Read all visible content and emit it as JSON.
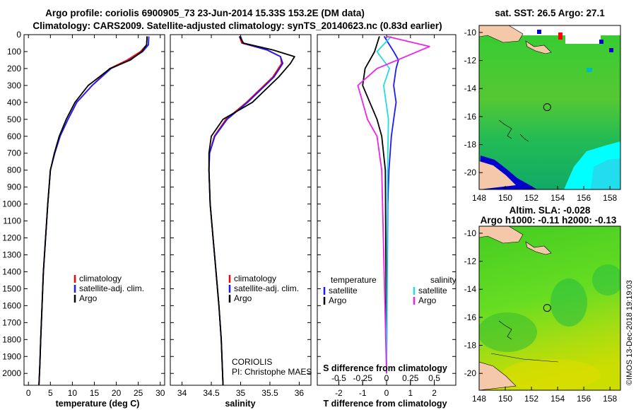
{
  "title_line1": "Argo profile: coriolis 6900905_73 23-Jun-2014 15.33S 153.2E (DM data)",
  "title_line2": "Climatology: CARS2009. Satellite-adjusted climatology: synTS_20140623.nc (0.83d earlier)",
  "side_credit": "©IMOS 13-Dec-2018 19:19:03",
  "colors": {
    "climatology": "#ff0000",
    "satellite": "#1a1aff",
    "argo": "#000000",
    "salinity_sat": "#22dddd",
    "salinity_argo": "#ee22ee"
  },
  "chart_data": [
    {
      "type": "line",
      "name": "temperature",
      "xlabel": "temperature (deg C)",
      "ylabel": "",
      "xlim": [
        -1,
        31
      ],
      "ylim": [
        2070,
        0
      ],
      "xticks": [
        "0",
        "5",
        "10",
        "15",
        "20",
        "25",
        "30"
      ],
      "xtick_values": [
        0,
        5,
        10,
        15,
        20,
        25,
        30
      ],
      "yticks": [
        "0",
        "100",
        "200",
        "300",
        "400",
        "500",
        "600",
        "700",
        "800",
        "900",
        "1000",
        "1100",
        "1200",
        "1300",
        "1400",
        "1500",
        "1600",
        "1700",
        "1800",
        "1900",
        "2000"
      ],
      "ytick_values": [
        0,
        100,
        200,
        300,
        400,
        500,
        600,
        700,
        800,
        900,
        1000,
        1100,
        1200,
        1300,
        1400,
        1500,
        1600,
        1700,
        1800,
        1900,
        2000
      ],
      "series": [
        {
          "name": "climatology",
          "color": "#ff0000",
          "x": [
            27.0,
            26.9,
            25.5,
            22.5,
            18.5,
            14.5,
            11.0,
            9.0,
            7.2,
            6.0,
            5.0,
            4.4,
            3.9,
            3.4,
            3.1,
            2.8,
            2.6,
            2.4
          ],
          "y": [
            10,
            60,
            100,
            150,
            200,
            300,
            400,
            500,
            600,
            700,
            800,
            1000,
            1200,
            1400,
            1600,
            1800,
            1950,
            2070
          ]
        },
        {
          "name": "satellite-adj. clim.",
          "color": "#1a1aff",
          "x": [
            27.4,
            27.3,
            26.0,
            23.0,
            18.8,
            14.5,
            11.0,
            9.0,
            7.2,
            6.0,
            5.0,
            4.4,
            3.9,
            3.4,
            3.1,
            2.8,
            2.6,
            2.4
          ],
          "y": [
            10,
            60,
            100,
            150,
            200,
            300,
            400,
            500,
            600,
            700,
            800,
            1000,
            1200,
            1400,
            1600,
            1800,
            1950,
            2070
          ]
        },
        {
          "name": "Argo",
          "color": "#000000",
          "x": [
            27.0,
            26.9,
            25.8,
            23.2,
            18.6,
            13.6,
            10.6,
            8.6,
            7.0,
            5.9,
            5.0,
            4.4,
            3.9,
            3.4,
            3.1,
            2.8,
            2.6,
            2.4
          ],
          "y": [
            10,
            60,
            100,
            150,
            200,
            300,
            400,
            500,
            600,
            700,
            800,
            1000,
            1200,
            1400,
            1600,
            1800,
            1950,
            2070
          ]
        }
      ],
      "legend": [
        "climatology",
        "satellite-adj. clim.",
        "Argo"
      ]
    },
    {
      "type": "line",
      "name": "salinity",
      "xlabel": "salinity",
      "xlim": [
        33.8,
        36.2
      ],
      "ylim": [
        2070,
        0
      ],
      "xticks": [
        "34",
        "34.5",
        "35",
        "35.5",
        "36"
      ],
      "xtick_values": [
        34,
        34.5,
        35,
        35.5,
        36
      ],
      "series": [
        {
          "name": "climatology",
          "color": "#ff0000",
          "x": [
            34.98,
            35.02,
            35.45,
            35.68,
            35.7,
            35.55,
            35.1,
            34.75,
            34.55,
            34.47,
            34.46,
            34.48,
            34.53,
            34.58,
            34.63,
            34.67,
            34.7
          ],
          "y": [
            10,
            50,
            90,
            130,
            170,
            250,
            400,
            500,
            600,
            700,
            800,
            1000,
            1200,
            1400,
            1600,
            1800,
            2070
          ]
        },
        {
          "name": "satellite-adj. clim.",
          "color": "#1a1aff",
          "x": [
            35.0,
            35.04,
            35.45,
            35.68,
            35.72,
            35.57,
            35.12,
            34.77,
            34.56,
            34.47,
            34.46,
            34.48,
            34.53,
            34.58,
            34.63,
            34.67,
            34.7
          ],
          "y": [
            10,
            50,
            90,
            130,
            170,
            250,
            400,
            500,
            600,
            700,
            800,
            1000,
            1200,
            1400,
            1600,
            1800,
            2070
          ]
        },
        {
          "name": "Argo",
          "color": "#000000",
          "x": [
            34.98,
            35.05,
            35.55,
            35.92,
            35.85,
            35.65,
            35.2,
            34.7,
            34.5,
            34.46,
            34.46,
            34.48,
            34.53,
            34.58,
            34.63,
            34.67,
            34.7
          ],
          "y": [
            10,
            50,
            90,
            130,
            170,
            250,
            400,
            500,
            600,
            700,
            800,
            1000,
            1200,
            1400,
            1600,
            1800,
            2070
          ]
        }
      ],
      "legend": [
        "climatology",
        "satellite-adj. clim.",
        "Argo"
      ],
      "annotation": [
        "CORIOLIS",
        "PI: Christophe MAES"
      ]
    },
    {
      "type": "line",
      "name": "difference",
      "xlabel": "T difference from climatology",
      "xlim": [
        -2.9,
        2.9
      ],
      "ylim": [
        2070,
        0
      ],
      "xticks": [
        "-2",
        "-1",
        "0",
        "1",
        "2"
      ],
      "xtick_values": [
        -2,
        -1,
        0,
        1,
        2
      ],
      "sticks_label": "S difference from climatology",
      "sticks": [
        "-0.5",
        "-0.25",
        "0",
        "0.25",
        "0.5"
      ],
      "stick_values": [
        -0.5,
        -0.25,
        0,
        0.25,
        0.5
      ],
      "series": [
        {
          "name": "T satellite",
          "color": "#1a1aff",
          "x": [
            -0.1,
            0.3,
            0.5,
            0.4,
            0.3,
            0.4,
            0.3,
            0.2,
            0.1,
            0.05,
            0.0
          ],
          "y": [
            10,
            100,
            150,
            200,
            300,
            400,
            500,
            600,
            800,
            1000,
            2000
          ]
        },
        {
          "name": "T Argo",
          "color": "#000000",
          "x": [
            -0.3,
            -0.5,
            -0.9,
            -1.0,
            -0.7,
            -0.4,
            -0.2,
            -0.05,
            0.0
          ],
          "y": [
            10,
            100,
            200,
            300,
            400,
            500,
            600,
            800,
            2000
          ]
        },
        {
          "name": "S satellite",
          "color": "#22dddd",
          "x": [
            0.05,
            -0.1,
            0.03,
            -0.03,
            0.02,
            0.01,
            0.0
          ],
          "y": [
            10,
            100,
            200,
            300,
            500,
            800,
            2000
          ]
        },
        {
          "name": "S Argo",
          "color": "#ee22ee",
          "x": [
            0.0,
            0.45,
            0.2,
            -0.1,
            -0.3,
            -0.25,
            -0.2,
            -0.1,
            -0.05,
            0.0
          ],
          "y": [
            10,
            70,
            130,
            200,
            300,
            400,
            500,
            600,
            800,
            2000
          ]
        }
      ],
      "legend_left_title": "temperature",
      "legend_right_title": "salinity",
      "legend_left": [
        "satellite",
        "Argo"
      ],
      "legend_right": [
        "satellite",
        "Argo"
      ]
    }
  ],
  "maps": [
    {
      "title": "sat. SST: 26.5 Argo: 27.1",
      "subtitle": "",
      "xlim": [
        148,
        158.8
      ],
      "ylim": [
        -21.2,
        -9.5
      ],
      "xticks": [
        "148",
        "150",
        "152",
        "154",
        "156",
        "158"
      ],
      "xtick_values": [
        148,
        150,
        152,
        154,
        156,
        158
      ],
      "yticks": [
        "-10",
        "-12",
        "-14",
        "-16",
        "-18",
        "-20"
      ],
      "ytick_values": [
        -10,
        -12,
        -14,
        -16,
        -18,
        -20
      ],
      "marker": [
        153.2,
        -15.33
      ]
    },
    {
      "title": "Altim. SLA: -0.028",
      "subtitle": "Argo h1000: -0.11 h2000: -0.13",
      "xlim": [
        148,
        158.8
      ],
      "ylim": [
        -21.2,
        -9.5
      ],
      "xticks": [
        "148",
        "150",
        "152",
        "154",
        "156",
        "158"
      ],
      "xtick_values": [
        148,
        150,
        152,
        154,
        156,
        158
      ],
      "yticks": [
        "-10",
        "-12",
        "-14",
        "-16",
        "-18",
        "-20"
      ],
      "ytick_values": [
        -10,
        -12,
        -14,
        -16,
        -18,
        -20
      ],
      "marker": [
        153.2,
        -15.33
      ]
    }
  ]
}
